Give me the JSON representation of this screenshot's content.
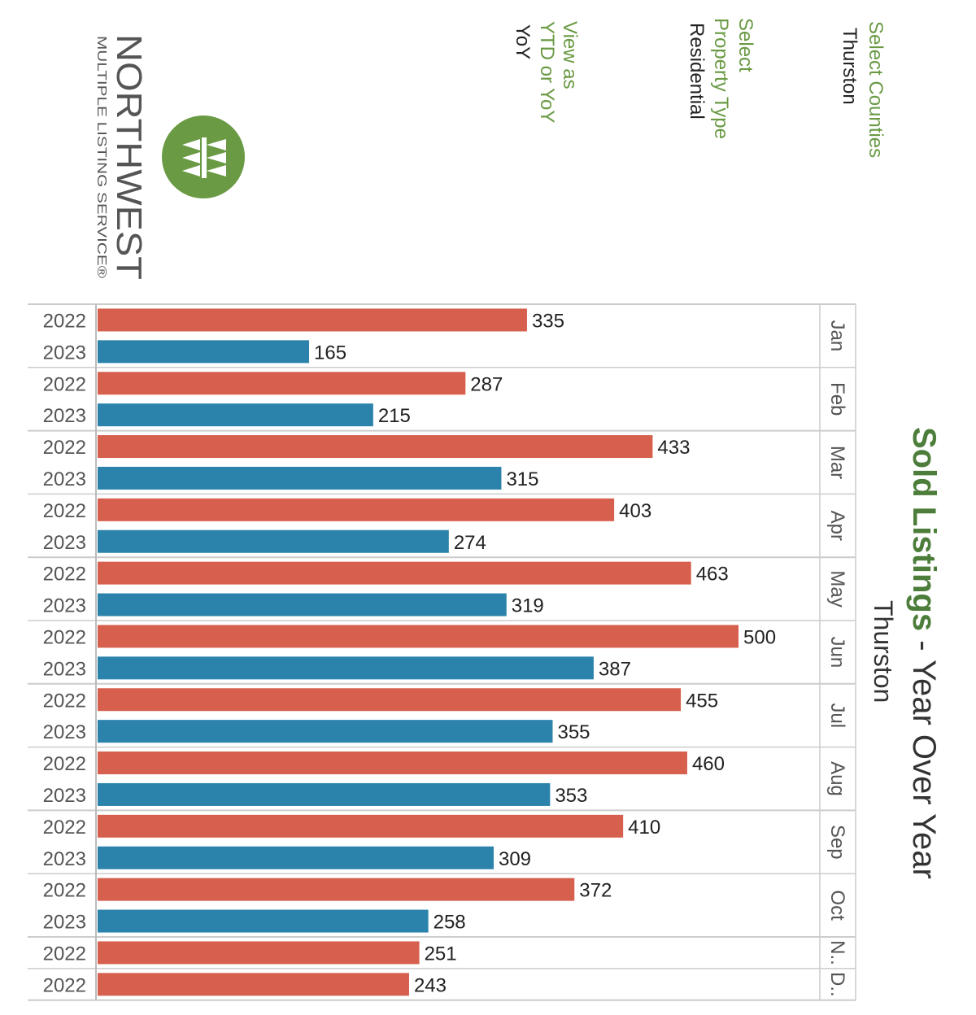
{
  "filters": {
    "counties_label": "Select Counties",
    "counties_value": "Thurston",
    "property_label_line1": "Select",
    "property_label_line2": "Property Type",
    "property_value": "Residential",
    "view_label_line1": "View as",
    "view_label_line2": "YTD or YoY",
    "view_value": "YoY"
  },
  "logo": {
    "wordmark": "NORTHWEST",
    "tagline": "MULTIPLE LISTING SERVICE®",
    "icon": "trees-logo-icon"
  },
  "title": {
    "main": "Sold Listings",
    "rest": " - Year Over Year",
    "subtitle": "Thurston"
  },
  "colors": {
    "2022": "#d6604d",
    "2023": "#2b83ab",
    "accent": "#6a9a44"
  },
  "chart_data": {
    "type": "bar",
    "orientation": "horizontal",
    "title": "Sold Listings - Year Over Year",
    "subtitle": "Thurston",
    "groups": [
      {
        "month": "Jan",
        "rows": [
          {
            "year": "2022",
            "value": 335
          },
          {
            "year": "2023",
            "value": 165
          }
        ]
      },
      {
        "month": "Feb",
        "rows": [
          {
            "year": "2022",
            "value": 287
          },
          {
            "year": "2023",
            "value": 215
          }
        ]
      },
      {
        "month": "Mar",
        "rows": [
          {
            "year": "2022",
            "value": 433
          },
          {
            "year": "2023",
            "value": 315
          }
        ]
      },
      {
        "month": "Apr",
        "rows": [
          {
            "year": "2022",
            "value": 403
          },
          {
            "year": "2023",
            "value": 274
          }
        ]
      },
      {
        "month": "May",
        "rows": [
          {
            "year": "2022",
            "value": 463
          },
          {
            "year": "2023",
            "value": 319
          }
        ]
      },
      {
        "month": "Jun",
        "rows": [
          {
            "year": "2022",
            "value": 500
          },
          {
            "year": "2023",
            "value": 387
          }
        ]
      },
      {
        "month": "Jul",
        "rows": [
          {
            "year": "2022",
            "value": 455
          },
          {
            "year": "2023",
            "value": 355
          }
        ]
      },
      {
        "month": "Aug",
        "rows": [
          {
            "year": "2022",
            "value": 460
          },
          {
            "year": "2023",
            "value": 353
          }
        ]
      },
      {
        "month": "Sep",
        "rows": [
          {
            "year": "2022",
            "value": 410
          },
          {
            "year": "2023",
            "value": 309
          }
        ]
      },
      {
        "month": "Oct",
        "rows": [
          {
            "year": "2022",
            "value": 372
          },
          {
            "year": "2023",
            "value": 258
          }
        ]
      },
      {
        "month": "N..",
        "rows": [
          {
            "year": "2022",
            "value": 251
          }
        ]
      },
      {
        "month": "D..",
        "rows": [
          {
            "year": "2022",
            "value": 243
          }
        ]
      }
    ],
    "xlim": [
      0,
      500
    ],
    "grid": false,
    "legend": "none"
  }
}
